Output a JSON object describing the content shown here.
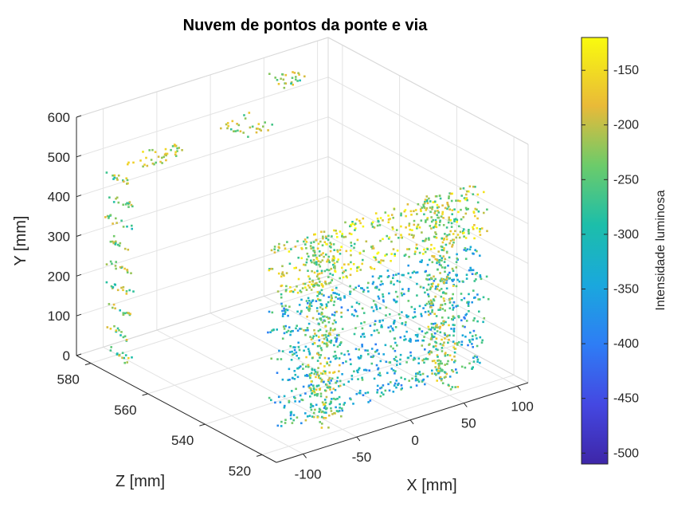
{
  "chart_data": {
    "type": "scatter3d",
    "title": "Nuvem de pontos da ponte e via",
    "xlabel": "X  [mm]",
    "ylabel": "Y  [mm]",
    "zlabel": "Z  [mm]",
    "xticks": [
      "-100",
      "-50",
      "0",
      "50",
      "100"
    ],
    "yticks": [
      "0",
      "100",
      "200",
      "300",
      "400",
      "500",
      "600"
    ],
    "zticks": [
      "520",
      "540",
      "560",
      "580"
    ],
    "xlim": [
      -125,
      110
    ],
    "ylim": [
      0,
      600
    ],
    "zlim": [
      515,
      585
    ],
    "colorbar": {
      "label": "Intensidade luminosa",
      "ticks": [
        "-150",
        "-200",
        "-250",
        "-300",
        "-350",
        "-400",
        "-450",
        "-500"
      ],
      "range": [
        -510,
        -120
      ],
      "colormap": "parula"
    },
    "grid": true,
    "colors": {
      "low": "#3e26a8",
      "mid": "#17b5c8",
      "high": "#f9fb0e"
    }
  }
}
